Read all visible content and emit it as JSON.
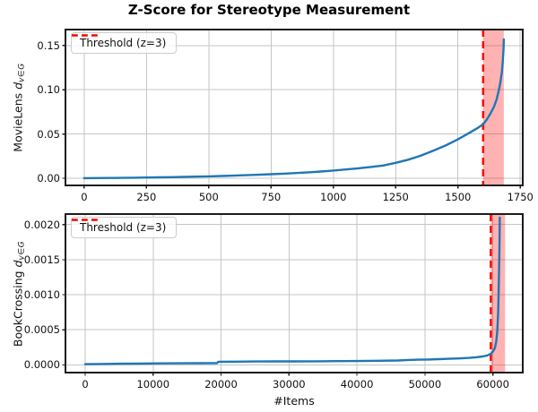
{
  "figure": {
    "title": "Z-Score for Stereotype Measurement",
    "xlabel": "#Items",
    "colors": {
      "series_line": "#1f77b4",
      "threshold_line": "#ff0000",
      "threshold_span_fill": "rgba(255,0,0,0.30)",
      "grid": "#c6c6c6",
      "spine": "#1c1c1c"
    }
  },
  "chart_data": [
    {
      "type": "line",
      "ylabel_prefix": "MovieLens ",
      "ylabel_math": "d",
      "ylabel_sub": "v∈G",
      "legend": {
        "label": "Threshold (z=3)",
        "position": "upper left",
        "style": "red dashed sample"
      },
      "grid": true,
      "xlim": [
        -75,
        1760
      ],
      "ylim": [
        -0.008,
        0.168
      ],
      "xticks": [
        0,
        250,
        500,
        750,
        1000,
        1250,
        1500,
        1750
      ],
      "xtick_labels": [
        "0",
        "250",
        "500",
        "750",
        "1000",
        "1250",
        "1500",
        "1750"
      ],
      "yticks": [
        0.0,
        0.05,
        0.1,
        0.15
      ],
      "ytick_labels": [
        "0.00",
        "0.05",
        "0.10",
        "0.15"
      ],
      "threshold_x": 1601,
      "span": [
        1601,
        1684
      ],
      "series": [
        {
          "x": [
            0,
            50,
            100,
            150,
            200,
            250,
            300,
            350,
            400,
            450,
            500,
            550,
            600,
            650,
            700,
            750,
            800,
            850,
            900,
            950,
            1000,
            1050,
            1100,
            1150,
            1200,
            1250,
            1300,
            1350,
            1400,
            1450,
            1500,
            1550,
            1580,
            1601,
            1615,
            1630,
            1645,
            1655,
            1663,
            1670,
            1676,
            1680,
            1683,
            1684
          ],
          "y": [
            0.0002,
            0.0003,
            0.0004,
            0.0005,
            0.0007,
            0.0009,
            0.0011,
            0.0013,
            0.0016,
            0.0019,
            0.0022,
            0.0026,
            0.003,
            0.0035,
            0.004,
            0.0046,
            0.0053,
            0.006,
            0.0068,
            0.0077,
            0.0088,
            0.01,
            0.0113,
            0.0128,
            0.0145,
            0.0175,
            0.021,
            0.0255,
            0.031,
            0.037,
            0.044,
            0.052,
            0.057,
            0.061,
            0.066,
            0.073,
            0.081,
            0.089,
            0.098,
            0.108,
            0.12,
            0.133,
            0.147,
            0.157
          ]
        }
      ]
    },
    {
      "type": "line",
      "ylabel_prefix": "BookCrossing ",
      "ylabel_math": "d",
      "ylabel_sub": "v∈G",
      "legend": {
        "label": "Threshold (z=3)",
        "position": "upper left",
        "style": "red dashed sample"
      },
      "grid": true,
      "xlim": [
        -2900,
        64400
      ],
      "ylim": [
        -0.00011,
        0.00215
      ],
      "xticks": [
        0,
        10000,
        20000,
        30000,
        40000,
        50000,
        60000
      ],
      "xtick_labels": [
        "0",
        "10000",
        "20000",
        "30000",
        "40000",
        "50000",
        "60000"
      ],
      "yticks": [
        0.0,
        0.0005,
        0.001,
        0.0015,
        0.002
      ],
      "ytick_labels": [
        "0.0000",
        "0.0005",
        "0.0010",
        "0.0015",
        "0.0020"
      ],
      "threshold_x": 59700,
      "span": [
        59700,
        61800
      ],
      "series": [
        {
          "x": [
            0,
            2000,
            5000,
            8000,
            11000,
            14000,
            17000,
            19400,
            19600,
            22000,
            25000,
            28000,
            31000,
            34000,
            37000,
            40000,
            43000,
            46000,
            47500,
            49000,
            50500,
            52000,
            53500,
            55000,
            56500,
            57500,
            58500,
            59200,
            59700,
            60000,
            60300,
            60500,
            60650,
            60780,
            60870,
            60940,
            60990,
            61020
          ],
          "y": [
            1e-05,
            1.3e-05,
            1.6e-05,
            1.9e-05,
            2.1e-05,
            2.3e-05,
            2.4e-05,
            2.5e-05,
            4.4e-05,
            4.6e-05,
            4.8e-05,
            4.9e-05,
            5e-05,
            5.1e-05,
            5.3e-05,
            5.5e-05,
            5.8e-05,
            6.2e-05,
            7e-05,
            7.4e-05,
            7.7e-05,
            8.1e-05,
            8.6e-05,
            9.2e-05,
            0.0001,
            0.000108,
            0.00012,
            0.000135,
            0.00016,
            0.00019,
            0.00024,
            0.00033,
            0.00048,
            0.00075,
            0.0011,
            0.0015,
            0.00185,
            0.0021
          ]
        }
      ]
    }
  ]
}
